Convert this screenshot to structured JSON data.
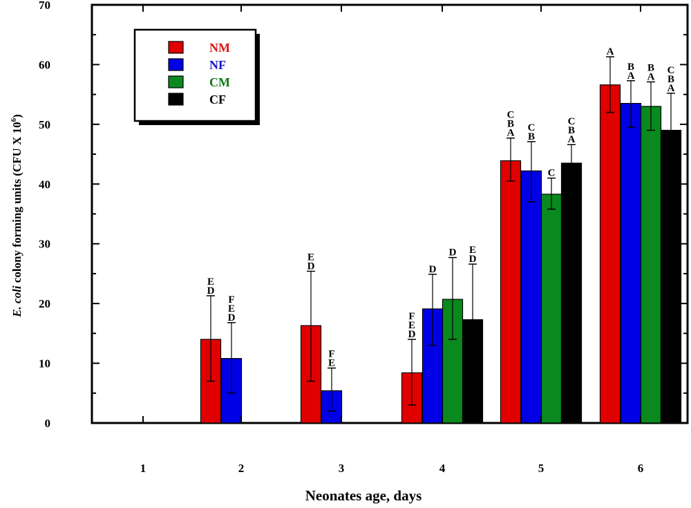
{
  "chart_data": {
    "type": "bar",
    "title": "",
    "xlabel": "Neonates age, days",
    "ylabel_parts": [
      "E. coli",
      " colony forming units (CFU X 10",
      "6",
      ")"
    ],
    "ylim": [
      0,
      70
    ],
    "yticks": [
      0,
      10,
      20,
      30,
      40,
      50,
      60,
      70
    ],
    "categories": [
      "1",
      "2",
      "3",
      "4",
      "5",
      "6"
    ],
    "legend_position": "top-left",
    "series": [
      {
        "name": "NM",
        "color": "#e00000",
        "legend_text_color": "#dd1111",
        "values": [
          null,
          14.0,
          16.3,
          8.4,
          43.9,
          56.6
        ],
        "err_low": [
          null,
          7.0,
          7.0,
          3.0,
          40.5,
          52.0
        ],
        "err_high": [
          null,
          21.3,
          25.4,
          14.0,
          47.7,
          61.3
        ],
        "letters": [
          null,
          [
            "E",
            "D"
          ],
          [
            "E",
            "D"
          ],
          [
            "F",
            "E",
            "D"
          ],
          [
            "C",
            "B",
            "A"
          ],
          [
            "A"
          ]
        ]
      },
      {
        "name": "NF",
        "color": "#0000e6",
        "legend_text_color": "#1515cc",
        "values": [
          null,
          10.8,
          5.4,
          19.1,
          42.2,
          53.5
        ],
        "err_low": [
          null,
          5.0,
          2.0,
          13.0,
          37.0,
          49.5
        ],
        "err_high": [
          null,
          16.8,
          9.2,
          24.9,
          47.1,
          57.3
        ],
        "letters": [
          null,
          [
            "F",
            "E",
            "D"
          ],
          [
            "F",
            "E"
          ],
          [
            "D"
          ],
          [
            "C",
            "B"
          ],
          [
            "B",
            "A"
          ]
        ]
      },
      {
        "name": "CM",
        "color": "#0a8a1e",
        "legend_text_color": "#0a7a14",
        "values": [
          null,
          null,
          null,
          20.7,
          38.3,
          53.0
        ],
        "err_low": [
          null,
          null,
          null,
          14.0,
          35.8,
          49.0
        ],
        "err_high": [
          null,
          null,
          null,
          27.7,
          41.0,
          57.1
        ],
        "letters": [
          null,
          null,
          null,
          [
            "D"
          ],
          [
            "C"
          ],
          [
            "B",
            "A"
          ]
        ]
      },
      {
        "name": "CF",
        "color": "#000000",
        "legend_text_color": "#000000",
        "values": [
          null,
          null,
          null,
          17.3,
          43.5,
          49.0
        ],
        "err_low": [
          null,
          null,
          null,
          8.0,
          40.0,
          45.0
        ],
        "err_high": [
          null,
          null,
          null,
          26.6,
          46.6,
          55.2
        ],
        "letters": [
          null,
          null,
          null,
          [
            "E",
            "D"
          ],
          [
            "C",
            "B",
            "A"
          ],
          [
            "C",
            "B",
            "A"
          ]
        ]
      }
    ]
  }
}
